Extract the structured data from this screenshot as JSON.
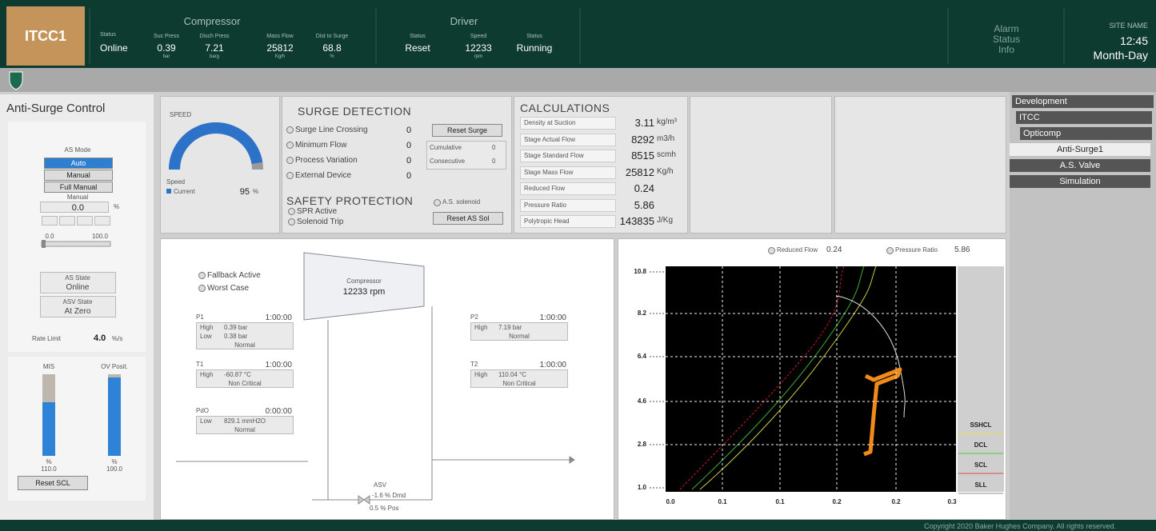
{
  "header": {
    "title": "ITCC1",
    "status": {
      "label": "Status",
      "value": "Online"
    },
    "compressor": {
      "title": "Compressor",
      "items": [
        {
          "label": "Suc Press",
          "value": "0.39",
          "unit": "bar"
        },
        {
          "label": "Disch Press",
          "value": "7.21",
          "unit": "barg"
        },
        {
          "label": "Mass Flow",
          "value": "25812",
          "unit": "Kg/h"
        },
        {
          "label": "Dist to Surge",
          "value": "68.8",
          "unit": "%"
        }
      ]
    },
    "driver": {
      "title": "Driver",
      "items": [
        {
          "label": "Status",
          "value": "Reset"
        },
        {
          "label": "Speed",
          "value": "12233",
          "unit": "rpm"
        },
        {
          "label": "Status",
          "value": "Running"
        }
      ]
    },
    "alarm": [
      "Alarm",
      "Status",
      "Info"
    ],
    "site": {
      "name": "SITE NAME",
      "time": "12:45",
      "date": "Month-Day"
    }
  },
  "left_panel": {
    "title": "Anti-Surge Control",
    "as_mode_label": "AS Mode",
    "modes": [
      "Auto",
      "Manual",
      "Full Manual"
    ],
    "manual_label": "Manual",
    "manual_value": "0.0",
    "manual_unit": "%",
    "slider_min": "0.0",
    "slider_max": "100.0",
    "as_state": {
      "label": "AS State",
      "value": "Online"
    },
    "asv_state": {
      "label": "ASV State",
      "value": "At Zero"
    },
    "rate_limit": {
      "label": "Rate Limit",
      "value": "4.0",
      "unit": "%/s"
    },
    "bars": [
      {
        "label": "MIS",
        "unit": "%",
        "value": "110.0"
      },
      {
        "label": "OV Posit.",
        "unit": "%",
        "value": "100.0"
      }
    ],
    "reset_scl": "Reset SCL"
  },
  "speed_panel": {
    "title": "SPEED",
    "legend_title": "Speed",
    "legend": "Current",
    "value": 95,
    "unit": "%"
  },
  "surge_detection": {
    "title": "SURGE DETECTION",
    "items": [
      {
        "label": "Surge Line Crossing",
        "value": "0"
      },
      {
        "label": "Minimum Flow",
        "value": "0"
      },
      {
        "label": "Process Variation",
        "value": "0"
      },
      {
        "label": "External Device",
        "value": "0"
      }
    ],
    "reset": "Reset Surge",
    "counters": [
      {
        "label": "Cumulative",
        "value": "0"
      },
      {
        "label": "Consecutive",
        "value": "0"
      }
    ]
  },
  "safety_protection": {
    "title": "SAFETY PROTECTION",
    "items": [
      "SPR Active",
      "Solenoid Trip"
    ],
    "as_solenoid": "A.S. solenoid",
    "reset": "Reset AS Sol"
  },
  "calculations": {
    "title": "CALCULATIONS",
    "rows": [
      {
        "label": "Density at Suction",
        "value": "3.11",
        "unit": "kg/m³"
      },
      {
        "label": "Stage Actual Flow",
        "value": "8292",
        "unit": "m3/h"
      },
      {
        "label": "Stage Standard Flow",
        "value": "8515",
        "unit": "scmh"
      },
      {
        "label": "Stage Mass Flow",
        "value": "25812",
        "unit": "Kg/h"
      },
      {
        "label": "Reduced Flow",
        "value": "0.24"
      },
      {
        "label": "Pressure Ratio",
        "value": "5.86"
      },
      {
        "label": "Polytropic Head",
        "value": "143835",
        "unit": "J/Kg"
      }
    ]
  },
  "process": {
    "fallback": "Fallback Active",
    "worst": "Worst Case",
    "compressor": {
      "label": "Compressor",
      "speed": "12233 rpm"
    },
    "p1": {
      "label": "P1",
      "time": "1:00:00",
      "rows": [
        [
          "High",
          "0.39 bar"
        ],
        [
          "Low",
          "0.38 bar"
        ]
      ],
      "status": "Normal"
    },
    "t1": {
      "label": "T1",
      "time": "1:00:00",
      "rows": [
        [
          "High",
          "-60.87 °C"
        ]
      ],
      "status": "Non Critical"
    },
    "pdo": {
      "label": "PdO",
      "time": "0:00:00",
      "rows": [
        [
          "Low",
          "829.1 mmH2O"
        ]
      ],
      "status": "Normal"
    },
    "p2": {
      "label": "P2",
      "time": "1:00:00",
      "rows": [
        [
          "High",
          "7.19 bar"
        ]
      ],
      "status": "Normal"
    },
    "t2": {
      "label": "T2",
      "time": "1:00:00",
      "rows": [
        [
          "High",
          "110.04 °C"
        ]
      ],
      "status": "Non Critical"
    },
    "valve": {
      "label": "ASV",
      "demand": "-1.6 % Dmd",
      "position": "0.5 % Pos"
    }
  },
  "surge_map": {
    "reduced_flow": {
      "label": "Reduced Flow",
      "value": "0.24"
    },
    "pressure_ratio": {
      "label": "Pressure Ratio",
      "value": "5.86"
    },
    "yticks": [
      "10.8",
      "8.2",
      "6.4",
      "4.6",
      "2.8",
      "1.0"
    ],
    "xticks": [
      "0.0",
      "0.1",
      "0.1",
      "0.2",
      "0.2",
      "0.3"
    ],
    "legend": [
      "SSHCL",
      "DCL",
      "SCL",
      "SLL"
    ]
  },
  "nav": {
    "items": [
      "Development",
      "ITCC",
      "Opticomp",
      "Anti-Surge1",
      "A.S. Valve",
      "Simulation"
    ]
  },
  "footer": "Copyright 2020 Baker Hughes Company. All rights reserved."
}
